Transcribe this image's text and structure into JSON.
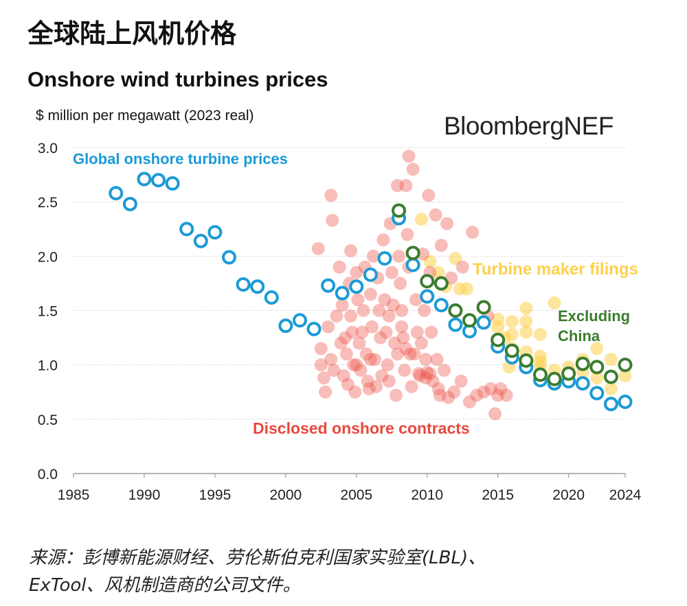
{
  "header": {
    "cn_title": "全球陆上风机价格",
    "logo_text": "BloombergNEF",
    "source_line1": "来源：彭博新能源财经、劳伦斯伯克利国家实验室(LBL)、",
    "source_line2": "ExTool、风机制造商的公司文件。"
  },
  "chart_data": {
    "type": "scatter",
    "title": "Onshore wind turbines prices",
    "ylabel": "$ million per megawatt (2023 real)",
    "xlabel": "",
    "xlim": [
      1985,
      2024
    ],
    "ylim": [
      0,
      3.0
    ],
    "grid": "horizontal dotted",
    "xticks": [
      1985,
      1990,
      1995,
      2000,
      2005,
      2010,
      2015,
      2020,
      2024
    ],
    "yticks": [
      "0.0",
      "0.5",
      "1.0",
      "1.5",
      "2.0",
      "2.5",
      "3.0"
    ],
    "colors": {
      "global": "#1b9ad6",
      "excl_china": "#3b7d2e",
      "contracts": "#ee5a4f",
      "filings": "#fdd04a"
    },
    "series": [
      {
        "name": "Global onshore turbine prices",
        "key": "global",
        "style": "ring",
        "x": [
          1988,
          1989,
          1990,
          1991,
          1992,
          1993,
          1994,
          1995,
          1996,
          1997,
          1998,
          1999,
          2000,
          2001,
          2002,
          2003,
          2004,
          2005,
          2006,
          2007,
          2008,
          2009,
          2010,
          2011,
          2012,
          2013,
          2014,
          2015,
          2016,
          2017,
          2018,
          2019,
          2020,
          2021,
          2022,
          2023,
          2024
        ],
        "y": [
          2.58,
          2.48,
          2.71,
          2.7,
          2.67,
          2.25,
          2.14,
          2.22,
          1.99,
          1.74,
          1.72,
          1.62,
          1.36,
          1.41,
          1.33,
          1.73,
          1.66,
          1.72,
          1.83,
          1.98,
          2.35,
          1.92,
          1.63,
          1.55,
          1.37,
          1.31,
          1.39,
          1.17,
          1.07,
          0.98,
          0.86,
          0.83,
          0.85,
          0.83,
          0.74,
          0.64,
          0.66
        ]
      },
      {
        "name": "Excluding China",
        "key": "excl_china",
        "style": "ring",
        "x": [
          2008,
          2009,
          2010,
          2011,
          2012,
          2013,
          2014,
          2015,
          2016,
          2017,
          2018,
          2019,
          2020,
          2021,
          2022,
          2023,
          2024
        ],
        "y": [
          2.42,
          2.03,
          1.77,
          1.75,
          1.5,
          1.41,
          1.53,
          1.23,
          1.13,
          1.04,
          0.91,
          0.87,
          0.92,
          1.01,
          0.98,
          0.89,
          1.0
        ]
      },
      {
        "name": "Turbine maker filings",
        "key": "filings",
        "style": "dot",
        "points": [
          [
            2009.6,
            2.34
          ],
          [
            2010.2,
            1.95
          ],
          [
            2010.8,
            1.85
          ],
          [
            2011.3,
            1.72
          ],
          [
            2012,
            1.98
          ],
          [
            2012.3,
            1.7
          ],
          [
            2012.8,
            1.7
          ],
          [
            2015,
            1.42
          ],
          [
            2015.5,
            1.25
          ],
          [
            2015,
            1.35
          ],
          [
            2016,
            1.4
          ],
          [
            2016,
            1.28
          ],
          [
            2016,
            1.15
          ],
          [
            2017,
            1.52
          ],
          [
            2017,
            1.4
          ],
          [
            2017,
            1.3
          ],
          [
            2017,
            1.12
          ],
          [
            2018,
            1.08
          ],
          [
            2018,
            1.03
          ],
          [
            2018,
            1.28
          ],
          [
            2019,
            1.57
          ],
          [
            2019,
            0.95
          ],
          [
            2020,
            0.9
          ],
          [
            2021,
            1.05
          ],
          [
            2021,
            0.93
          ],
          [
            2022,
            1.15
          ],
          [
            2022,
            0.88
          ],
          [
            2023,
            1.05
          ],
          [
            2023,
            0.78
          ],
          [
            2024,
            0.9
          ],
          [
            2015.8,
            0.98
          ],
          [
            2018,
            0.98
          ],
          [
            2020,
            0.98
          ]
        ]
      },
      {
        "name": "Disclosed onshore contracts",
        "key": "contracts",
        "style": "dot",
        "points": [
          [
            2002.3,
            2.07
          ],
          [
            2002.5,
            1.0
          ],
          [
            2002.7,
            0.88
          ],
          [
            2002.5,
            1.15
          ],
          [
            2003.2,
            2.56
          ],
          [
            2003.3,
            2.33
          ],
          [
            2003,
            1.35
          ],
          [
            2003.2,
            1.05
          ],
          [
            2002.8,
            0.75
          ],
          [
            2003.4,
            0.95
          ],
          [
            2003.6,
            1.45
          ],
          [
            2003.8,
            1.9
          ],
          [
            2004,
            1.55
          ],
          [
            2004.2,
            1.25
          ],
          [
            2004.3,
            1.1
          ],
          [
            2004.1,
            0.9
          ],
          [
            2004.5,
            1.75
          ],
          [
            2004.6,
            2.05
          ],
          [
            2004.7,
            1.3
          ],
          [
            2004.8,
            1.0
          ],
          [
            2004.4,
            0.82
          ],
          [
            2004.9,
            0.75
          ],
          [
            2005,
            1.85
          ],
          [
            2005.1,
            1.6
          ],
          [
            2005.2,
            1.2
          ],
          [
            2005.3,
            0.95
          ],
          [
            2005.5,
            1.5
          ],
          [
            2005.6,
            1.9
          ],
          [
            2005.7,
            1.1
          ],
          [
            2005.8,
            0.85
          ],
          [
            2005.9,
            0.78
          ],
          [
            2006,
            1.65
          ],
          [
            2006.1,
            1.35
          ],
          [
            2006.2,
            2.0
          ],
          [
            2006.3,
            1.05
          ],
          [
            2006.5,
            1.8
          ],
          [
            2006.6,
            1.5
          ],
          [
            2006.7,
            1.25
          ],
          [
            2006.8,
            0.9
          ],
          [
            2006.9,
            2.15
          ],
          [
            2007,
            1.6
          ],
          [
            2007.1,
            1.3
          ],
          [
            2007.2,
            1.0
          ],
          [
            2007.3,
            0.85
          ],
          [
            2007.4,
            2.3
          ],
          [
            2007.5,
            1.85
          ],
          [
            2007.6,
            1.55
          ],
          [
            2007.7,
            1.2
          ],
          [
            2007.8,
            0.72
          ],
          [
            2007.9,
            2.65
          ],
          [
            2008,
            2.0
          ],
          [
            2008.1,
            1.75
          ],
          [
            2008.2,
            1.5
          ],
          [
            2008.3,
            1.25
          ],
          [
            2008.4,
            0.95
          ],
          [
            2008.5,
            2.65
          ],
          [
            2008.6,
            2.2
          ],
          [
            2008.7,
            1.9
          ],
          [
            2008.8,
            1.1
          ],
          [
            2008.9,
            0.8
          ],
          [
            2008.7,
            2.92
          ],
          [
            2009,
            2.8
          ],
          [
            2009.2,
            1.6
          ],
          [
            2009.3,
            1.3
          ],
          [
            2009.4,
            0.92
          ],
          [
            2009.5,
            0.9
          ],
          [
            2009.6,
            1.2
          ],
          [
            2009.7,
            2.02
          ],
          [
            2009.8,
            1.5
          ],
          [
            2009.9,
            1.05
          ],
          [
            2010,
            0.93
          ],
          [
            2010.1,
            2.56
          ],
          [
            2010.2,
            1.85
          ],
          [
            2010.3,
            1.3
          ],
          [
            2010.4,
            0.85
          ],
          [
            2010.6,
            2.38
          ],
          [
            2010.7,
            1.05
          ],
          [
            2010.8,
            0.78
          ],
          [
            2010.9,
            0.72
          ],
          [
            2011,
            2.1
          ],
          [
            2011.2,
            0.95
          ],
          [
            2011.4,
            2.3
          ],
          [
            2011.5,
            0.7
          ],
          [
            2011.7,
            1.8
          ],
          [
            2011.9,
            0.75
          ],
          [
            2012.5,
            1.9
          ],
          [
            2013,
            0.66
          ],
          [
            2013.2,
            2.22
          ],
          [
            2013.5,
            0.72
          ],
          [
            2014,
            0.75
          ],
          [
            2014.3,
            1.45
          ],
          [
            2014.5,
            0.78
          ],
          [
            2014.8,
            0.55
          ],
          [
            2015,
            0.72
          ],
          [
            2015.2,
            0.78
          ],
          [
            2015.6,
            0.72
          ],
          [
            2006,
            1.05
          ],
          [
            2005.4,
            1.3
          ],
          [
            2003.9,
            1.2
          ],
          [
            2007.3,
            1.45
          ],
          [
            2008.2,
            1.35
          ],
          [
            2009.9,
            0.88
          ],
          [
            2010.2,
            0.92
          ],
          [
            2008.5,
            1.15
          ],
          [
            2006.4,
            0.8
          ],
          [
            2004.6,
            1.45
          ],
          [
            2005,
            1.0
          ],
          [
            2007.9,
            1.1
          ],
          [
            2009.1,
            1.1
          ],
          [
            2012.4,
            0.85
          ]
        ]
      }
    ],
    "annotations": [
      {
        "text": "Global onshore turbine prices",
        "key": "global"
      },
      {
        "text": "Turbine maker filings",
        "key": "filings"
      },
      {
        "text": "Excluding",
        "key": "excl_china"
      },
      {
        "text": "China",
        "key": "excl_china"
      },
      {
        "text": "Disclosed onshore contracts",
        "key": "contracts"
      }
    ]
  }
}
